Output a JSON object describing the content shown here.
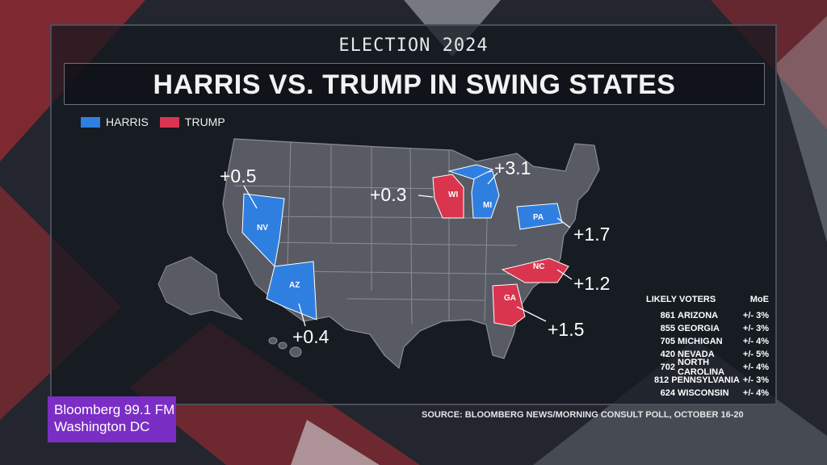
{
  "header": {
    "kicker": "ELECTION 2024",
    "title": "HARRIS VS. TRUMP IN SWING STATES"
  },
  "legend": [
    {
      "label": "HARRIS",
      "color": "#2f7fe0"
    },
    {
      "label": "TRUMP",
      "color": "#d9354f"
    }
  ],
  "colors": {
    "harris": "#2f7fe0",
    "trump": "#d9354f",
    "base_state": "#585b63"
  },
  "states": [
    {
      "abbr": "NV",
      "leader": "harris",
      "margin": "+0.5"
    },
    {
      "abbr": "AZ",
      "leader": "harris",
      "margin": "+0.4"
    },
    {
      "abbr": "WI",
      "leader": "trump",
      "margin": "+0.3"
    },
    {
      "abbr": "MI",
      "leader": "harris",
      "margin": "+3.1"
    },
    {
      "abbr": "PA",
      "leader": "harris",
      "margin": "+1.7"
    },
    {
      "abbr": "NC",
      "leader": "trump",
      "margin": "+1.2"
    },
    {
      "abbr": "GA",
      "leader": "trump",
      "margin": "+1.5"
    }
  ],
  "voters_table": {
    "header_left": "LIKELY VOTERS",
    "header_right": "MoE",
    "rows": [
      {
        "n": "861",
        "state": "ARIZONA",
        "moe": "+/- 3%"
      },
      {
        "n": "855",
        "state": "GEORGIA",
        "moe": "+/- 3%"
      },
      {
        "n": "705",
        "state": "MICHIGAN",
        "moe": "+/- 4%"
      },
      {
        "n": "420",
        "state": "NEVADA",
        "moe": "+/- 5%"
      },
      {
        "n": "702",
        "state": "NORTH CAROLINA",
        "moe": "+/- 4%"
      },
      {
        "n": "812",
        "state": "PENNSYLVANIA",
        "moe": "+/- 3%"
      },
      {
        "n": "624",
        "state": "WISCONSIN",
        "moe": "+/- 4%"
      }
    ]
  },
  "source": "SOURCE: BLOOMBERG NEWS/MORNING CONSULT POLL, OCTOBER 16-20",
  "watermark": {
    "line1": "Bloomberg 99.1 FM",
    "line2": "Washington DC"
  }
}
